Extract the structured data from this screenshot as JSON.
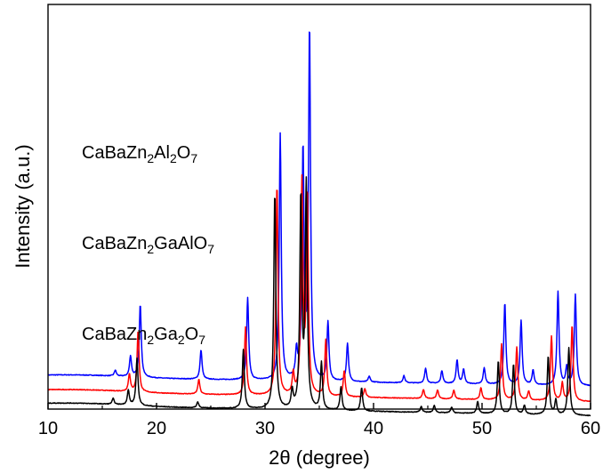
{
  "chart_data": {
    "type": "line",
    "title": "",
    "xlabel": "2θ (degree)",
    "ylabel": "Intensity (a.u.)",
    "xlim": [
      10,
      60
    ],
    "xticks": [
      10,
      20,
      30,
      40,
      50,
      60
    ],
    "y_ticks_shown": false,
    "grid": false,
    "legend": "none (series labelled directly above each trace)",
    "series": [
      {
        "name": "CaBaZn2Al2O7",
        "label_parts": [
          {
            "t": "CaBaZn",
            "sub": false
          },
          {
            "t": "2",
            "sub": true
          },
          {
            "t": "Al",
            "sub": false
          },
          {
            "t": "2",
            "sub": true
          },
          {
            "t": "O",
            "sub": false
          },
          {
            "t": "7",
            "sub": true
          }
        ],
        "color": "#0000ff",
        "baseline": 0.55,
        "slope": -0.0032,
        "peaks": [
          [
            16.2,
            0.1
          ],
          [
            17.6,
            0.35
          ],
          [
            18.5,
            1.25
          ],
          [
            24.1,
            0.5
          ],
          [
            28.4,
            1.4
          ],
          [
            31.4,
            4.2
          ],
          [
            32.9,
            0.45
          ],
          [
            33.5,
            3.9
          ],
          [
            34.1,
            6.0
          ],
          [
            35.8,
            1.0
          ],
          [
            37.6,
            0.65
          ],
          [
            39.6,
            0.1
          ],
          [
            42.8,
            0.12
          ],
          [
            44.8,
            0.25
          ],
          [
            46.3,
            0.22
          ],
          [
            47.7,
            0.4
          ],
          [
            48.3,
            0.25
          ],
          [
            50.2,
            0.28
          ],
          [
            52.1,
            1.4
          ],
          [
            53.6,
            1.1
          ],
          [
            54.7,
            0.25
          ],
          [
            57.0,
            1.6
          ],
          [
            57.8,
            0.3
          ],
          [
            58.6,
            1.55
          ]
        ]
      },
      {
        "name": "CaBaZn2GaAlO7",
        "label_parts": [
          {
            "t": "CaBaZn",
            "sub": false
          },
          {
            "t": "2",
            "sub": true
          },
          {
            "t": "GaAlO",
            "sub": false
          },
          {
            "t": "7",
            "sub": true
          }
        ],
        "color": "#ff0000",
        "baseline": 0.3,
        "slope": -0.0035,
        "peaks": [
          [
            17.5,
            0.3
          ],
          [
            18.3,
            1.05
          ],
          [
            23.9,
            0.25
          ],
          [
            28.2,
            1.15
          ],
          [
            31.1,
            3.6
          ],
          [
            32.6,
            0.35
          ],
          [
            33.4,
            3.6
          ],
          [
            33.9,
            3.4
          ],
          [
            35.6,
            0.95
          ],
          [
            37.3,
            0.45
          ],
          [
            39.2,
            0.15
          ],
          [
            44.6,
            0.15
          ],
          [
            45.9,
            0.15
          ],
          [
            47.4,
            0.15
          ],
          [
            49.9,
            0.2
          ],
          [
            51.8,
            0.95
          ],
          [
            53.2,
            0.9
          ],
          [
            54.3,
            0.15
          ],
          [
            56.4,
            1.1
          ],
          [
            57.4,
            0.3
          ],
          [
            58.3,
            1.3
          ]
        ]
      },
      {
        "name": "CaBaZn2Ga2O7",
        "label_parts": [
          {
            "t": "CaBaZn",
            "sub": false
          },
          {
            "t": "2",
            "sub": true
          },
          {
            "t": "Ga",
            "sub": false
          },
          {
            "t": "2",
            "sub": true
          },
          {
            "t": "O",
            "sub": false
          },
          {
            "t": "7",
            "sub": true
          }
        ],
        "color": "#000000",
        "baseline": 0.07,
        "slope": -0.0037,
        "peaks": [
          [
            16.0,
            0.1
          ],
          [
            17.4,
            0.25
          ],
          [
            18.2,
            0.8
          ],
          [
            23.8,
            0.1
          ],
          [
            28.0,
            1.0
          ],
          [
            30.9,
            3.7
          ],
          [
            32.5,
            0.3
          ],
          [
            33.3,
            3.6
          ],
          [
            33.8,
            3.8
          ],
          [
            35.2,
            0.8
          ],
          [
            37.0,
            0.4
          ],
          [
            38.9,
            0.4
          ],
          [
            44.4,
            0.1
          ],
          [
            45.6,
            0.12
          ],
          [
            47.2,
            0.1
          ],
          [
            49.6,
            0.2
          ],
          [
            51.5,
            0.9
          ],
          [
            52.9,
            0.85
          ],
          [
            53.9,
            0.15
          ],
          [
            56.1,
            1.0
          ],
          [
            56.8,
            0.25
          ],
          [
            58.0,
            1.15
          ]
        ]
      }
    ]
  }
}
